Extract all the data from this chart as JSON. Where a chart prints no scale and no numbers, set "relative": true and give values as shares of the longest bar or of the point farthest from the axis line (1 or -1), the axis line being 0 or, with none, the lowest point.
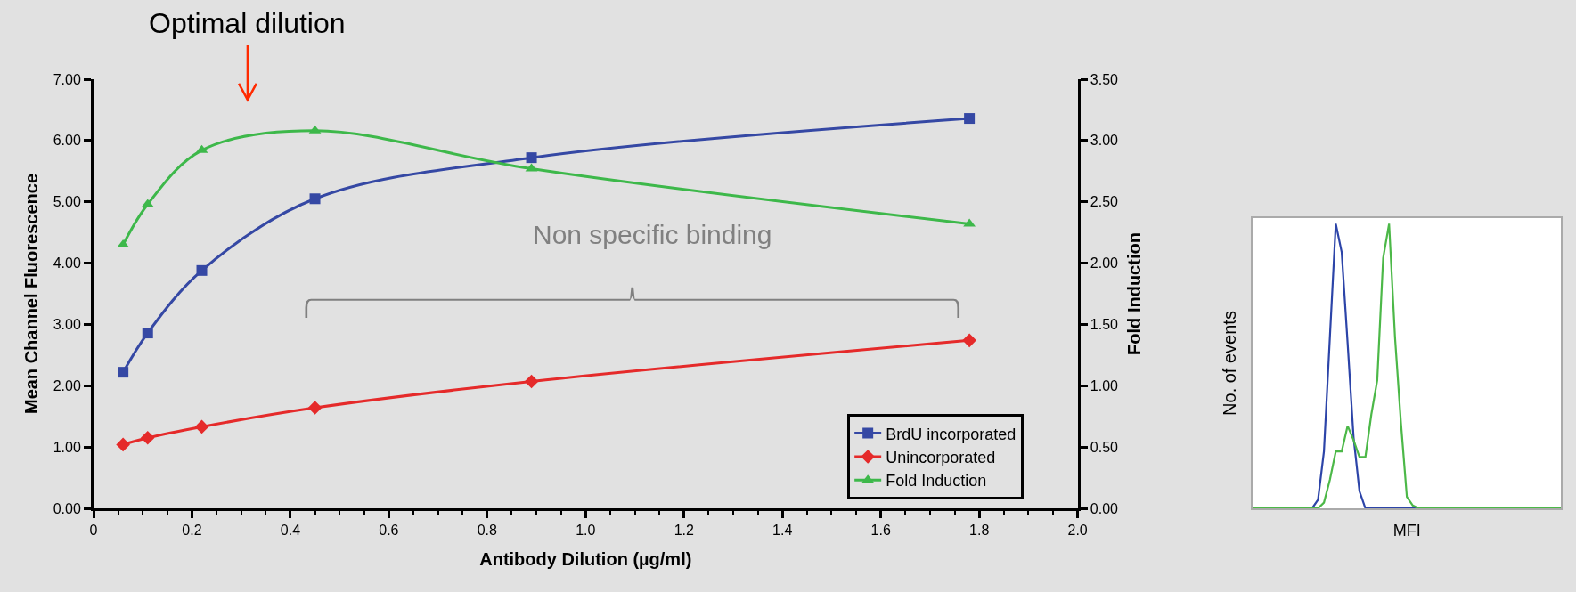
{
  "chart_data": [
    {
      "type": "line",
      "xlabel": "Antibody Dilution (µg/ml)",
      "ylabel": "Mean Channel Fluorescence",
      "y2label": "Fold Induction",
      "x": [
        0.06,
        0.11,
        0.22,
        0.45,
        0.89,
        1.78
      ],
      "series": [
        {
          "name": "BrdU incorporated",
          "color": "#3548a4",
          "marker": "square",
          "values": [
            2.22,
            2.86,
            3.88,
            5.05,
            5.72,
            6.36
          ]
        },
        {
          "name": "Unincorporated",
          "color": "#e52a2a",
          "marker": "diamond",
          "values": [
            1.04,
            1.15,
            1.33,
            1.64,
            2.07,
            2.74
          ]
        },
        {
          "name": "Fold Induction",
          "color": "#3db84a",
          "marker": "triangle",
          "axis": "y2",
          "values": [
            2.15,
            2.48,
            2.92,
            3.08,
            2.77,
            2.32
          ]
        }
      ],
      "xlim": [
        0,
        2.0
      ],
      "xticks": [
        0,
        0.2,
        0.4,
        0.6,
        0.8,
        {
          "value": 1.0,
          "label": "1.0"
        },
        1.2,
        1.4,
        1.6,
        1.8,
        {
          "value": 2.0,
          "label": "2.0"
        }
      ],
      "ylim": [
        0,
        7
      ],
      "yticks": [
        {
          "value": 0,
          "label": "0.00"
        },
        {
          "value": 1,
          "label": "1.00"
        },
        {
          "value": 2,
          "label": "2.00"
        },
        {
          "value": 3,
          "label": "3.00"
        },
        {
          "value": 4,
          "label": "4.00"
        },
        {
          "value": 5,
          "label": "5.00"
        },
        {
          "value": 6,
          "label": "6.00"
        },
        {
          "value": 7,
          "label": "7.00"
        }
      ],
      "y2lim": [
        0,
        3.5
      ],
      "y2ticks": [
        {
          "value": 0,
          "label": "0.00"
        },
        {
          "value": 0.5,
          "label": "0.50"
        },
        {
          "value": 1,
          "label": "1.00"
        },
        {
          "value": 1.5,
          "label": "1.50"
        },
        {
          "value": 2,
          "label": "2.00"
        },
        {
          "value": 2.5,
          "label": "2.50"
        },
        {
          "value": 3,
          "label": "3.00"
        },
        {
          "value": 3.5,
          "label": "3.50"
        }
      ],
      "annotations": [
        "Optimal dilution",
        "Non specific binding"
      ],
      "legend": "bottom right",
      "line_style": "solid"
    },
    {
      "type": "line",
      "relative": true,
      "xlabel": "MFI",
      "ylabel": "No. of events",
      "categories": [
        null,
        null,
        null,
        null,
        null,
        null,
        null,
        null,
        null,
        null,
        null,
        null,
        null,
        null,
        null,
        null,
        null,
        null,
        null,
        null,
        null,
        null,
        null,
        null,
        null,
        null,
        null,
        null,
        null,
        null,
        null,
        null,
        null,
        null,
        null,
        null,
        null,
        null,
        null,
        null,
        null,
        null,
        null,
        null,
        null,
        null,
        null,
        null,
        null,
        null,
        null,
        null,
        null
      ],
      "series": [
        {
          "color": "#2c44a8",
          "values": [
            null,
            null,
            null,
            null,
            null,
            null,
            null,
            null,
            null,
            null,
            0,
            0.03,
            0.2,
            0.6,
            1.0,
            0.9,
            0.58,
            0.25,
            0.06,
            0,
            0,
            0,
            0,
            0,
            0,
            0,
            0,
            0,
            0,
            null,
            null,
            null,
            null,
            null,
            null,
            null,
            null,
            null,
            null,
            null,
            null,
            null,
            null,
            null,
            null,
            null,
            null,
            null,
            null,
            null,
            null,
            null,
            null
          ]
        },
        {
          "color": "#4cb848",
          "values": [
            0,
            0,
            0,
            0,
            0,
            0,
            0,
            0,
            0,
            0,
            0,
            0,
            0.02,
            0.1,
            0.2,
            0.2,
            0.29,
            0.24,
            0.18,
            0.18,
            0.33,
            0.45,
            0.88,
            1.0,
            0.6,
            0.3,
            0.04,
            0.01,
            0,
            0,
            0,
            0,
            0,
            0,
            0,
            0,
            0,
            0,
            0,
            0,
            0,
            0,
            0,
            0,
            0,
            0,
            0,
            0,
            0,
            0,
            0,
            0,
            0
          ]
        }
      ],
      "line_style": "solid"
    }
  ]
}
